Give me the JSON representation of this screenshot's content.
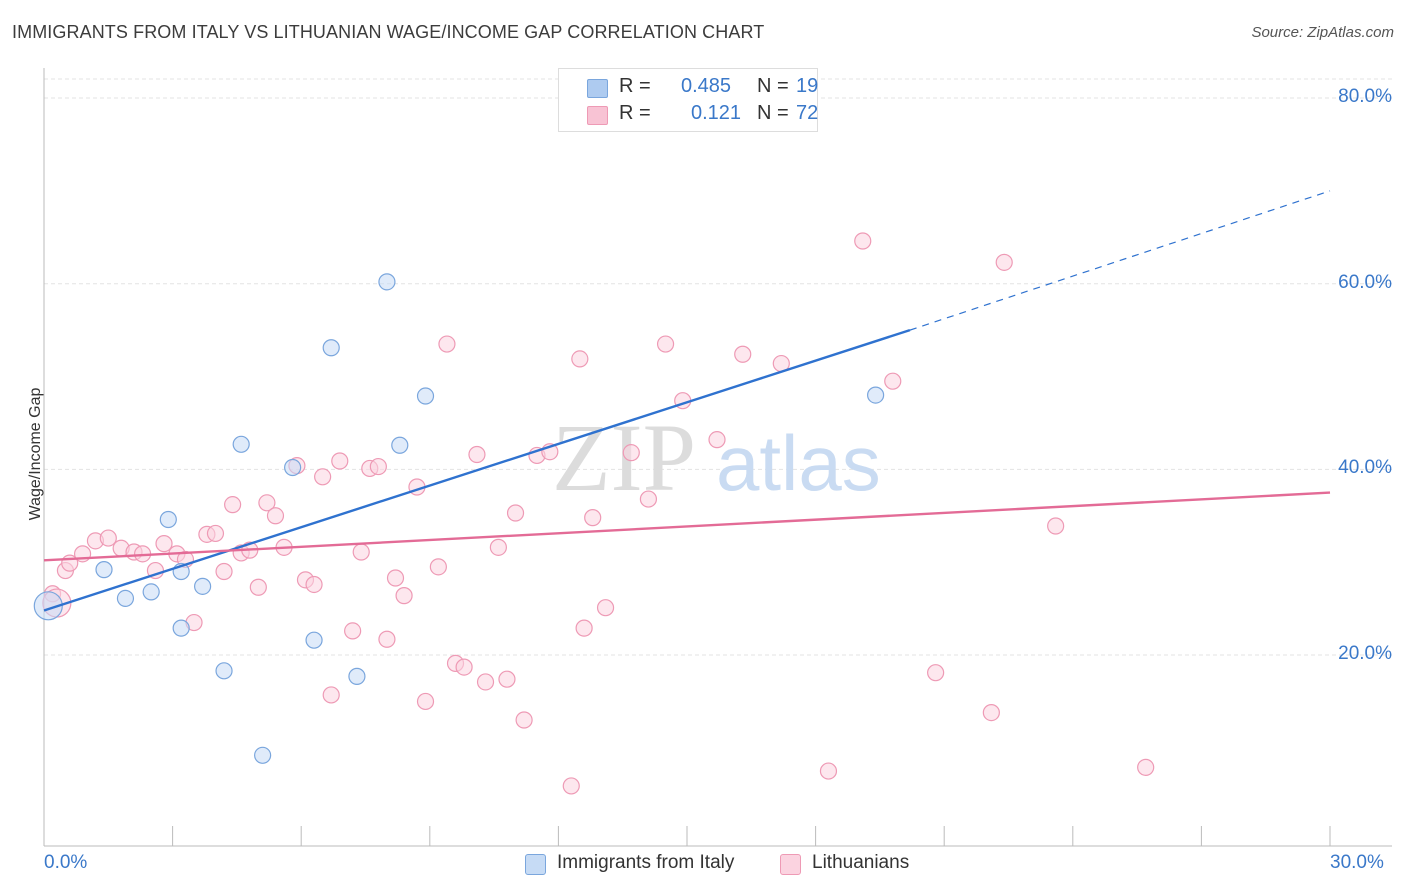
{
  "title": "IMMIGRANTS FROM ITALY VS LITHUANIAN WAGE/INCOME GAP CORRELATION CHART",
  "source": "Source: ZipAtlas.com",
  "watermark": {
    "zip": "ZIP",
    "atlas": "atlas"
  },
  "legend": {
    "rows": [
      {
        "r_label": "R =",
        "r_value": "0.485",
        "n_label": "N =",
        "n_value": "19",
        "color": "#aecbf0",
        "border": "#7aa6dd"
      },
      {
        "r_label": "R =",
        "r_value": "0.121",
        "n_label": "N =",
        "n_value": "72",
        "color": "#f8c3d4",
        "border": "#ee9ab5"
      }
    ]
  },
  "bottom_legend": [
    {
      "label": "Immigrants from Italy",
      "color": "#c6dbf5",
      "border": "#7aa6dd"
    },
    {
      "label": "Lithuanians",
      "color": "#fbd3e0",
      "border": "#ee9ab5"
    }
  ],
  "chart_data": {
    "type": "scatter",
    "title": "IMMIGRANTS FROM ITALY VS LITHUANIAN WAGE/INCOME GAP CORRELATION CHART",
    "xlabel": "",
    "ylabel": "Wage/Income Gap",
    "xlim": [
      0,
      30
    ],
    "ylim": [
      0,
      80
    ],
    "x_ticks": [
      "0.0%",
      "30.0%"
    ],
    "y_ticks": [
      "20.0%",
      "40.0%",
      "60.0%",
      "80.0%"
    ],
    "y_tick_values": [
      20,
      40,
      60,
      80
    ],
    "grid": true,
    "legend_position": "top-center",
    "series": [
      {
        "name": "Immigrants from Italy",
        "color": "#7aa6dd",
        "fill": "#c6dbf5",
        "trend_color": "#2f72cf",
        "trend": {
          "x0": 0,
          "y0": 24.8,
          "x1": 20.2,
          "y1": 55.0,
          "dash_x1": 30,
          "dash_y1": 70.0
        },
        "points": [
          [
            0.1,
            25.3
          ],
          [
            1.4,
            29.2
          ],
          [
            1.9,
            26.1
          ],
          [
            2.5,
            26.8
          ],
          [
            3.2,
            29.0
          ],
          [
            2.9,
            34.6
          ],
          [
            3.2,
            22.9
          ],
          [
            3.7,
            27.4
          ],
          [
            4.2,
            18.3
          ],
          [
            4.6,
            42.7
          ],
          [
            5.1,
            9.2
          ],
          [
            5.8,
            40.2
          ],
          [
            6.3,
            21.6
          ],
          [
            6.7,
            53.1
          ],
          [
            7.3,
            17.7
          ],
          [
            8.0,
            60.2
          ],
          [
            8.3,
            42.6
          ],
          [
            8.9,
            47.9
          ],
          [
            19.4,
            48.0
          ]
        ]
      },
      {
        "name": "Lithuanians",
        "color": "#ee9ab5",
        "fill": "#fbd3e0",
        "trend_color": "#e36b96",
        "trend": {
          "x0": 0,
          "y0": 30.2,
          "x1": 30,
          "y1": 37.5
        },
        "points": [
          [
            0.2,
            26.6
          ],
          [
            0.5,
            29.1
          ],
          [
            0.6,
            29.9
          ],
          [
            0.9,
            30.9
          ],
          [
            1.2,
            32.3
          ],
          [
            1.5,
            32.6
          ],
          [
            1.8,
            31.5
          ],
          [
            2.1,
            31.1
          ],
          [
            2.3,
            30.9
          ],
          [
            2.6,
            29.1
          ],
          [
            2.8,
            32.0
          ],
          [
            3.1,
            30.9
          ],
          [
            3.3,
            30.3
          ],
          [
            3.5,
            23.5
          ],
          [
            3.8,
            33.0
          ],
          [
            4.0,
            33.1
          ],
          [
            4.2,
            29.0
          ],
          [
            4.4,
            36.2
          ],
          [
            4.6,
            31.0
          ],
          [
            4.8,
            31.3
          ],
          [
            5.0,
            27.3
          ],
          [
            5.2,
            36.4
          ],
          [
            5.4,
            35.0
          ],
          [
            5.6,
            31.6
          ],
          [
            5.9,
            40.4
          ],
          [
            6.1,
            28.1
          ],
          [
            6.3,
            27.6
          ],
          [
            6.5,
            39.2
          ],
          [
            6.7,
            15.7
          ],
          [
            6.9,
            40.9
          ],
          [
            7.2,
            22.6
          ],
          [
            7.4,
            31.1
          ],
          [
            7.6,
            40.1
          ],
          [
            7.8,
            40.3
          ],
          [
            8.0,
            21.7
          ],
          [
            8.2,
            28.3
          ],
          [
            8.4,
            26.4
          ],
          [
            8.7,
            38.1
          ],
          [
            8.9,
            15.0
          ],
          [
            9.2,
            29.5
          ],
          [
            9.4,
            53.5
          ],
          [
            9.6,
            19.1
          ],
          [
            9.8,
            18.7
          ],
          [
            10.1,
            41.6
          ],
          [
            10.3,
            17.1
          ],
          [
            10.6,
            31.6
          ],
          [
            10.8,
            17.4
          ],
          [
            11.0,
            35.3
          ],
          [
            11.2,
            13.0
          ],
          [
            11.5,
            41.5
          ],
          [
            11.8,
            41.9
          ],
          [
            12.3,
            5.9
          ],
          [
            12.5,
            51.9
          ],
          [
            12.6,
            22.9
          ],
          [
            12.8,
            34.8
          ],
          [
            13.1,
            25.1
          ],
          [
            13.7,
            41.8
          ],
          [
            14.1,
            36.8
          ],
          [
            14.5,
            53.5
          ],
          [
            14.9,
            47.4
          ],
          [
            15.7,
            43.2
          ],
          [
            16.3,
            52.4
          ],
          [
            17.2,
            51.4
          ],
          [
            18.3,
            7.5
          ],
          [
            19.1,
            64.6
          ],
          [
            19.8,
            49.5
          ],
          [
            20.8,
            18.1
          ],
          [
            22.1,
            13.8
          ],
          [
            22.4,
            62.3
          ],
          [
            23.6,
            33.9
          ],
          [
            25.7,
            7.9
          ],
          [
            0.3,
            25.6
          ]
        ]
      }
    ]
  }
}
